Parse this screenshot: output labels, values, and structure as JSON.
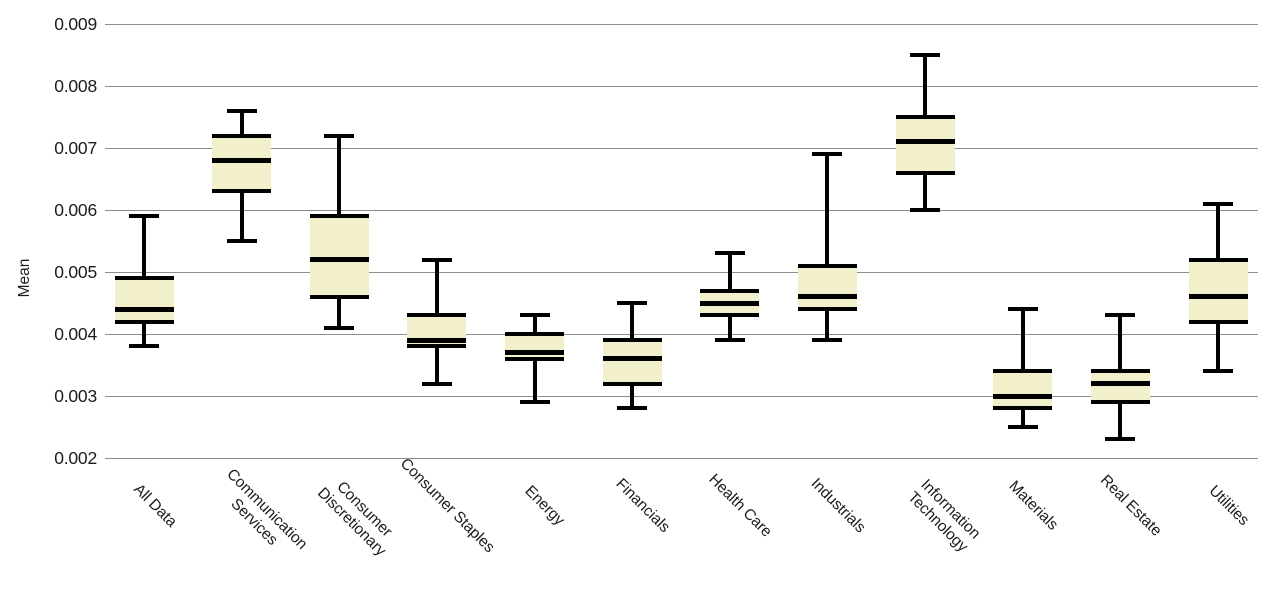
{
  "page": {
    "background": "#ffffff"
  },
  "chart_data": {
    "type": "box",
    "ylabel": "Mean",
    "ylim": [
      0.002,
      0.009
    ],
    "yticks": [
      0.009,
      0.008,
      0.007,
      0.006,
      0.005,
      0.004,
      0.003,
      0.002
    ],
    "ytick_labels": [
      "0.009",
      "0.008",
      "0.007",
      "0.006",
      "0.005",
      "0.004",
      "0.003",
      "0.002"
    ],
    "grid": "horizontal",
    "legend": "none",
    "categories": [
      "All Data",
      "Communication\nServices",
      "Consumer\nDiscretionary",
      "Consumer Staples",
      "Energy",
      "Financials",
      "Health Care",
      "Industrials",
      "Information\nTechnology",
      "Materials",
      "Real Estate",
      "Utilities"
    ],
    "series": [
      {
        "category": "All Data",
        "min": 0.0038,
        "q1": 0.0042,
        "median": 0.0044,
        "q3": 0.0049,
        "max": 0.0059
      },
      {
        "category": "Communication Services",
        "min": 0.0055,
        "q1": 0.0063,
        "median": 0.0068,
        "q3": 0.0072,
        "max": 0.0076
      },
      {
        "category": "Consumer Discretionary",
        "min": 0.0041,
        "q1": 0.0046,
        "median": 0.0052,
        "q3": 0.0059,
        "max": 0.0072
      },
      {
        "category": "Consumer Staples",
        "min": 0.0032,
        "q1": 0.0038,
        "median": 0.0039,
        "q3": 0.0043,
        "max": 0.0052
      },
      {
        "category": "Energy",
        "min": 0.0029,
        "q1": 0.0036,
        "median": 0.0037,
        "q3": 0.004,
        "max": 0.0043
      },
      {
        "category": "Financials",
        "min": 0.0028,
        "q1": 0.0032,
        "median": 0.0036,
        "q3": 0.0039,
        "max": 0.0045
      },
      {
        "category": "Health Care",
        "min": 0.0039,
        "q1": 0.0043,
        "median": 0.0045,
        "q3": 0.0047,
        "max": 0.0053
      },
      {
        "category": "Industrials",
        "min": 0.0039,
        "q1": 0.0044,
        "median": 0.0046,
        "q3": 0.0051,
        "max": 0.0069
      },
      {
        "category": "Information Technology",
        "min": 0.006,
        "q1": 0.0066,
        "median": 0.0071,
        "q3": 0.0075,
        "max": 0.0085
      },
      {
        "category": "Materials",
        "min": 0.0025,
        "q1": 0.0028,
        "median": 0.003,
        "q3": 0.0034,
        "max": 0.0044
      },
      {
        "category": "Real Estate",
        "min": 0.0023,
        "q1": 0.0029,
        "median": 0.0032,
        "q3": 0.0034,
        "max": 0.0043
      },
      {
        "category": "Utilities",
        "min": 0.0034,
        "q1": 0.0042,
        "median": 0.0046,
        "q3": 0.0052,
        "max": 0.0061
      }
    ],
    "colors": {
      "box_fill": "#f2f0ca",
      "line": "#000000",
      "gridline": "#8c8c8c",
      "text": "#1c1c1c",
      "background": "#ffffff"
    }
  }
}
